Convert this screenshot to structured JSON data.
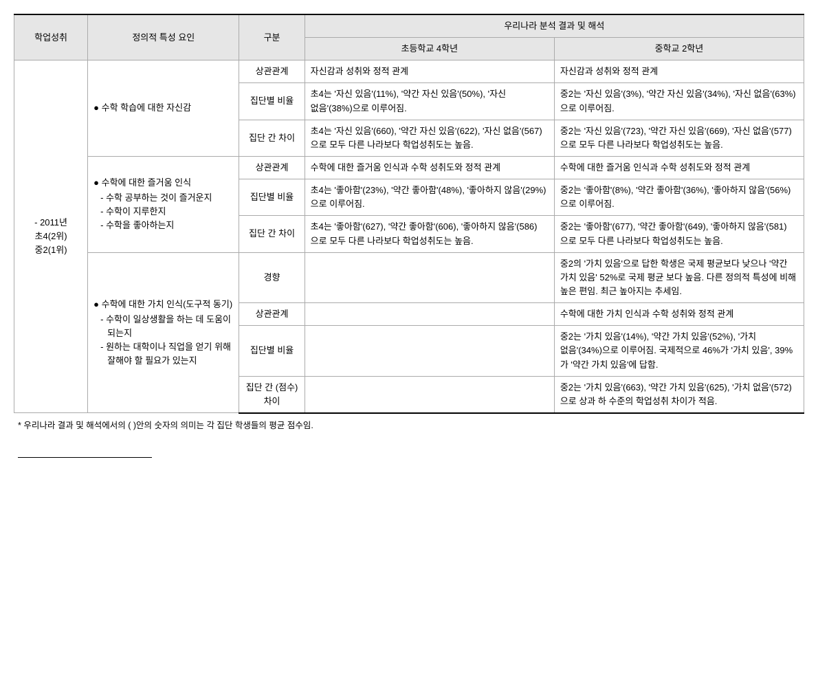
{
  "headers": {
    "h0": "학업성취",
    "h1": "정의적 특성 요인",
    "h2": "구분",
    "h3": "우리나라 분석 결과 및 해석",
    "sub0": "초등학교 4학년",
    "sub1": "중학교 2학년"
  },
  "col0": {
    "line1": "- 2011년",
    "line2": "초4(2위)",
    "line3": "중2(1위)"
  },
  "factors": {
    "f1": "● 수학 학습에 대한 자신감",
    "f2a": "● 수학에 대한 즐거움 인식",
    "f2b1": "- 수학 공부하는 것이 즐거운지",
    "f2b2": "- 수학이 지루한지",
    "f2b3": "- 수학을 좋아하는지",
    "f3a": "● 수학에 대한 가치 인식(도구적 동기)",
    "f3b1": "- 수학이 일상생활을 하는 데 도움이 되는지",
    "f3b2": "- 원하는 대학이나 직업을 얻기 위해 잘해야 할 필요가 있는지"
  },
  "gubun": {
    "g1": "상관관계",
    "g2": "집단별 비율",
    "g3": "집단 간 차이",
    "g4": "경향",
    "g5": "집단 간 (점수) 차이"
  },
  "cells": {
    "r1c1": "자신감과 성취와 정적 관계",
    "r1c2": "자신감과 성취와 정적 관계",
    "r2c1": "초4는 '자신 있음'(11%), '약간 자신 있음'(50%), '자신 없음'(38%)으로 이루어짐.",
    "r2c2": "중2는 '자신 있음'(3%), '약간 자신 있음'(34%), '자신 없음'(63%)으로 이루어짐.",
    "r3c1": "초4는 '자신 있음'(660), '약간 자신 있음'(622), '자신 없음'(567)으로 모두 다른 나라보다 학업성취도는 높음.",
    "r3c2": "중2는 '자신 있음'(723), '약간 자신 있음'(669), '자신 없음'(577)으로 모두 다른 나라보다 학업성취도는 높음.",
    "r4c1": "수학에 대한 즐거움 인식과 수학 성취도와 정적 관계",
    "r4c2": "수학에 대한 즐거움 인식과 수학 성취도와 정적 관계",
    "r5c1": "초4는 '좋아함'(23%), '약간 좋아함'(48%), '좋아하지 않음'(29%)으로 이루어짐.",
    "r5c2": "중2는 '좋아함'(8%), '약간 좋아함'(36%), '좋아하지 않음'(56%)으로 이루어짐.",
    "r6c1": "초4는 '좋아함'(627), '약간 좋아함'(606), '좋아하지 않음'(586)으로 모두 다른 나라보다 학업성취도는 높음.",
    "r6c2": "중2는 '좋아함'(677), '약간 좋아함'(649), '좋아하지 않음'(581)으로 모두 다른 나라보다 학업성취도는 높음.",
    "r7c1": "",
    "r7c2": "중2의 '가치 있음'으로 답한 학생은 국제 평균보다 낮으나 '약간 가치 있음' 52%로 국제 평균 보다 높음. 다른 정의적 특성에 비해 높은 편임. 최근 높아지는 추세임.",
    "r8c1": "",
    "r8c2": "수학에 대한 가치 인식과 수학 성취와 정적 관계",
    "r9c1": "",
    "r9c2": "중2는 '가치 있음'(14%), '약간 가치 있음'(52%), '가치 없음'(34%)으로 이루어짐. 국제적으로 46%가 '가치 있음', 39%가 '약간 가치 있음'에 답함.",
    "r10c1": "",
    "r10c2": "중2는 '가치 있음'(663), '약간 가치 있음'(625), '가치 없음'(572)으로 상과 하 수준의 학업성취 차이가 적음."
  },
  "footnote": "* 우리나라 결과 및 해석에서의 ( )안의 숫자의 의미는 각 집단 학생들의 평균 점수임."
}
